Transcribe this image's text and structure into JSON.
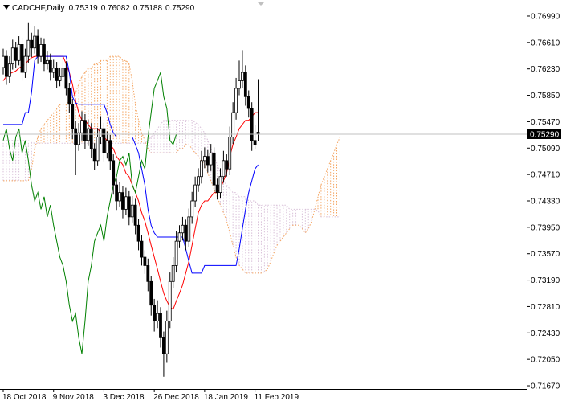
{
  "chart_data": {
    "type": "candlestick",
    "title": "CADCHF,Daily",
    "ohlc_header": [
      "0.75319",
      "0.76082",
      "0.75188",
      "0.75290"
    ],
    "candle_color": "#000000",
    "ylim": [
      0.71624,
      0.77221
    ],
    "yticks": [
      {
        "value": 0.7699,
        "label": "0.76990"
      },
      {
        "value": 0.7661,
        "label": "0.76610"
      },
      {
        "value": 0.7623,
        "label": "0.76230"
      },
      {
        "value": 0.7585,
        "label": "0.75850"
      },
      {
        "value": 0.7547,
        "label": "0.75470"
      },
      {
        "value": 0.7509,
        "label": "0.75090"
      },
      {
        "value": 0.7471,
        "label": "0.74710"
      },
      {
        "value": 0.7433,
        "label": "0.74330"
      },
      {
        "value": 0.7395,
        "label": "0.73950"
      },
      {
        "value": 0.7357,
        "label": "0.73570"
      },
      {
        "value": 0.7319,
        "label": "0.73190"
      },
      {
        "value": 0.7281,
        "label": "0.72810"
      },
      {
        "value": 0.7243,
        "label": "0.72430"
      },
      {
        "value": 0.7205,
        "label": "0.72050"
      },
      {
        "value": 0.7167,
        "label": "0.71670"
      }
    ],
    "current_price": {
      "value": 0.7529,
      "label": "0.75290"
    },
    "categories": [
      "18 Oct 2018",
      null,
      null,
      null,
      null,
      null,
      null,
      null,
      null,
      null,
      null,
      null,
      null,
      null,
      null,
      null,
      "9 Nov 2018",
      null,
      null,
      null,
      null,
      null,
      null,
      null,
      null,
      null,
      null,
      null,
      null,
      null,
      null,
      null,
      "3 Dec 2018",
      null,
      null,
      null,
      null,
      null,
      null,
      null,
      null,
      null,
      null,
      null,
      null,
      null,
      null,
      null,
      "26 Dec 2018",
      null,
      null,
      null,
      null,
      null,
      null,
      null,
      null,
      null,
      null,
      null,
      null,
      null,
      null,
      null,
      "18 Jan 2019",
      null,
      null,
      null,
      null,
      null,
      null,
      null,
      null,
      null,
      null,
      null,
      null,
      null,
      null,
      null,
      "11 Feb 2019",
      null,
      null,
      null,
      null,
      null,
      null,
      null,
      null,
      null,
      null,
      null,
      null,
      null,
      null,
      null,
      null,
      null,
      null,
      null,
      null,
      null,
      null,
      null,
      null,
      null,
      null,
      null
    ],
    "ohlc": [
      [
        0.7625,
        0.7652,
        0.7615,
        0.7641
      ],
      [
        0.7641,
        0.765,
        0.76,
        0.7612
      ],
      [
        0.7612,
        0.7641,
        0.7603,
        0.763
      ],
      [
        0.763,
        0.7665,
        0.7622,
        0.7653
      ],
      [
        0.7653,
        0.7662,
        0.7625,
        0.7635
      ],
      [
        0.7635,
        0.767,
        0.7628,
        0.7658
      ],
      [
        0.7658,
        0.7668,
        0.7606,
        0.7618
      ],
      [
        0.7618,
        0.7652,
        0.761,
        0.7641
      ],
      [
        0.7641,
        0.769,
        0.7632,
        0.7664
      ],
      [
        0.7664,
        0.7675,
        0.764,
        0.7653
      ],
      [
        0.7653,
        0.7685,
        0.7645,
        0.767
      ],
      [
        0.767,
        0.768,
        0.763,
        0.7641
      ],
      [
        0.7641,
        0.7668,
        0.7633,
        0.7658
      ],
      [
        0.7658,
        0.7667,
        0.762,
        0.763
      ],
      [
        0.763,
        0.7648,
        0.7622,
        0.7635
      ],
      [
        0.7635,
        0.7645,
        0.7606,
        0.7618
      ],
      [
        0.7618,
        0.7636,
        0.761,
        0.7624
      ],
      [
        0.7624,
        0.7633,
        0.7595,
        0.7606
      ],
      [
        0.7606,
        0.7625,
        0.7598,
        0.7612
      ],
      [
        0.7612,
        0.764,
        0.7604,
        0.7624
      ],
      [
        0.7624,
        0.7634,
        0.7585,
        0.7595
      ],
      [
        0.7595,
        0.7603,
        0.756,
        0.7572
      ],
      [
        0.7572,
        0.758,
        0.7522,
        0.7537
      ],
      [
        0.7537,
        0.7548,
        0.747,
        0.7514
      ],
      [
        0.7514,
        0.7545,
        0.7505,
        0.7531
      ],
      [
        0.7531,
        0.7562,
        0.752,
        0.7549
      ],
      [
        0.7549,
        0.7558,
        0.7508,
        0.752
      ],
      [
        0.752,
        0.755,
        0.7512,
        0.7537
      ],
      [
        0.7537,
        0.7545,
        0.7495,
        0.7508
      ],
      [
        0.7508,
        0.7516,
        0.7478,
        0.7491
      ],
      [
        0.7491,
        0.7538,
        0.7484,
        0.7525
      ],
      [
        0.7525,
        0.7555,
        0.7515,
        0.7537
      ],
      [
        0.7537,
        0.7545,
        0.749,
        0.7502
      ],
      [
        0.7502,
        0.7533,
        0.7494,
        0.752
      ],
      [
        0.752,
        0.7528,
        0.7478,
        0.7491
      ],
      [
        0.7491,
        0.75,
        0.7442,
        0.7456
      ],
      [
        0.7456,
        0.7465,
        0.742,
        0.7433
      ],
      [
        0.7433,
        0.746,
        0.7425,
        0.7445
      ],
      [
        0.7445,
        0.7454,
        0.7408,
        0.7421
      ],
      [
        0.7421,
        0.7452,
        0.7413,
        0.7439
      ],
      [
        0.7439,
        0.7447,
        0.7398,
        0.741
      ],
      [
        0.741,
        0.744,
        0.7402,
        0.7427
      ],
      [
        0.7427,
        0.7436,
        0.7385,
        0.7398
      ],
      [
        0.7398,
        0.7407,
        0.7362,
        0.7375
      ],
      [
        0.7375,
        0.7384,
        0.734,
        0.7352
      ],
      [
        0.7352,
        0.7362,
        0.7328,
        0.734
      ],
      [
        0.734,
        0.735,
        0.7303,
        0.7317
      ],
      [
        0.7317,
        0.7325,
        0.7268,
        0.7283
      ],
      [
        0.7283,
        0.7292,
        0.7245,
        0.726
      ],
      [
        0.726,
        0.729,
        0.725,
        0.7271
      ],
      [
        0.7271,
        0.728,
        0.7222,
        0.7236
      ],
      [
        0.7236,
        0.7245,
        0.718,
        0.7213
      ],
      [
        0.7213,
        0.7275,
        0.72,
        0.726
      ],
      [
        0.726,
        0.733,
        0.725,
        0.7317
      ],
      [
        0.7317,
        0.7352,
        0.7308,
        0.734
      ],
      [
        0.734,
        0.739,
        0.733,
        0.7375
      ],
      [
        0.7375,
        0.7398,
        0.7365,
        0.7387
      ],
      [
        0.7387,
        0.741,
        0.7376,
        0.7398
      ],
      [
        0.7398,
        0.7406,
        0.7362,
        0.7375
      ],
      [
        0.7375,
        0.7422,
        0.7366,
        0.741
      ],
      [
        0.741,
        0.7446,
        0.74,
        0.7433
      ],
      [
        0.7433,
        0.7468,
        0.7424,
        0.7456
      ],
      [
        0.7456,
        0.748,
        0.7446,
        0.7468
      ],
      [
        0.7468,
        0.7505,
        0.7458,
        0.7491
      ],
      [
        0.7491,
        0.751,
        0.748,
        0.7497
      ],
      [
        0.7497,
        0.7506,
        0.7474,
        0.7485
      ],
      [
        0.7485,
        0.7515,
        0.7476,
        0.7502
      ],
      [
        0.7502,
        0.751,
        0.7444,
        0.7456
      ],
      [
        0.7456,
        0.7465,
        0.7435,
        0.7445
      ],
      [
        0.7445,
        0.748,
        0.7437,
        0.7468
      ],
      [
        0.7468,
        0.7505,
        0.7459,
        0.7491
      ],
      [
        0.7491,
        0.75,
        0.7468,
        0.7479
      ],
      [
        0.7479,
        0.754,
        0.747,
        0.7525
      ],
      [
        0.7525,
        0.7575,
        0.7515,
        0.756
      ],
      [
        0.756,
        0.761,
        0.755,
        0.7595
      ],
      [
        0.7595,
        0.7635,
        0.7585,
        0.7606
      ],
      [
        0.7606,
        0.765,
        0.7596,
        0.7618
      ],
      [
        0.7618,
        0.7628,
        0.757,
        0.7583
      ],
      [
        0.7583,
        0.7592,
        0.7553,
        0.7566
      ],
      [
        0.7566,
        0.7575,
        0.7505,
        0.752
      ],
      [
        0.752,
        0.7542,
        0.7508,
        0.7514
      ],
      [
        0.75319,
        0.76082,
        0.75188,
        0.7529
      ],
      null,
      null,
      null,
      null,
      null,
      null,
      null,
      null,
      null,
      null,
      null,
      null,
      null,
      null,
      null,
      null,
      null,
      null,
      null,
      null,
      null,
      null,
      null,
      null,
      null,
      null
    ],
    "lines": [
      {
        "color": "#ff0000",
        "values": [
          0.7606,
          0.7612,
          0.7616,
          0.7618,
          0.762,
          0.7624,
          0.7627,
          0.763,
          0.7635,
          0.7639,
          0.7641,
          0.7641,
          0.7641,
          0.7641,
          0.7641,
          0.7641,
          0.7641,
          0.7641,
          0.7641,
          0.7641,
          0.763,
          0.7618,
          0.7601,
          0.7577,
          0.756,
          0.7549,
          0.7549,
          0.7543,
          0.7537,
          0.7537,
          0.7537,
          0.7531,
          0.7525,
          0.752,
          0.7514,
          0.7508,
          0.7497,
          0.7491,
          0.7485,
          0.7473,
          0.7468,
          0.7456,
          0.7445,
          0.7433,
          0.7416,
          0.7404,
          0.7387,
          0.7369,
          0.7352,
          0.7335,
          0.7317,
          0.73,
          0.7289,
          0.728,
          0.7277,
          0.7289,
          0.73,
          0.7312,
          0.7329,
          0.7346,
          0.7369,
          0.7393,
          0.7416,
          0.7427,
          0.7433,
          0.7433,
          0.7439,
          0.7445,
          0.7445,
          0.745,
          0.7462,
          0.7473,
          0.7497,
          0.7514,
          0.7525,
          0.7537,
          0.7543,
          0.7549,
          0.7549,
          0.7554,
          0.756,
          0.756,
          null,
          null,
          null,
          null,
          null,
          null,
          null,
          null,
          null,
          null,
          null,
          null,
          null,
          null,
          null,
          null,
          null,
          null,
          null,
          null,
          null,
          null,
          null,
          null,
          null,
          null
        ]
      },
      {
        "color": "#0000ff",
        "values": [
          0.7543,
          0.7543,
          0.7543,
          0.7543,
          0.7543,
          0.7543,
          0.7543,
          0.756,
          0.756,
          0.7589,
          0.7635,
          0.7641,
          0.7641,
          0.7641,
          0.7641,
          0.7641,
          0.7641,
          0.7641,
          0.7641,
          0.7641,
          0.7641,
          0.7618,
          0.7583,
          0.7574,
          0.7572,
          0.7572,
          0.7572,
          0.7572,
          0.7572,
          0.7572,
          0.7572,
          0.7572,
          0.7572,
          0.756,
          0.7543,
          0.7531,
          0.7525,
          0.7525,
          0.7525,
          0.7525,
          0.7525,
          0.7525,
          0.7514,
          0.7502,
          0.7479,
          0.7456,
          0.7421,
          0.7398,
          0.7387,
          0.7381,
          0.7381,
          0.7381,
          0.7381,
          0.7381,
          0.7381,
          0.7381,
          0.7381,
          0.7381,
          0.7364,
          0.7346,
          0.7329,
          0.7329,
          0.7329,
          0.7329,
          0.734,
          0.734,
          0.734,
          0.734,
          0.734,
          0.734,
          0.734,
          0.734,
          0.734,
          0.734,
          0.734,
          0.7364,
          0.7393,
          0.7421,
          0.7445,
          0.7462,
          0.7479,
          0.7485,
          null,
          null,
          null,
          null,
          null,
          null,
          null,
          null,
          null,
          null,
          null,
          null,
          null,
          null,
          null,
          null,
          null,
          null,
          null,
          null,
          null,
          null,
          null,
          null,
          null,
          null
        ]
      },
      {
        "color": "#008000",
        "values": [
          0.752,
          0.7537,
          0.7508,
          0.7491,
          0.7525,
          0.7537,
          0.7502,
          0.752,
          0.7491,
          0.7456,
          0.7433,
          0.7445,
          0.7421,
          0.7439,
          0.741,
          0.7427,
          0.7398,
          0.7375,
          0.7352,
          0.734,
          0.7317,
          0.7283,
          0.726,
          0.7271,
          0.7236,
          0.7213,
          0.726,
          0.7317,
          0.734,
          0.7375,
          0.7387,
          0.7398,
          0.7375,
          0.741,
          0.7433,
          0.7456,
          0.7468,
          0.7491,
          0.7497,
          0.7485,
          0.7502,
          0.7456,
          0.7445,
          0.7468,
          0.7491,
          0.7479,
          0.7525,
          0.756,
          0.7595,
          0.7606,
          0.7618,
          0.7583,
          0.7566,
          0.752,
          0.7514,
          0.7529,
          null,
          null,
          null,
          null,
          null,
          null,
          null,
          null,
          null,
          null,
          null,
          null,
          null,
          null,
          null,
          null,
          null,
          null,
          null,
          null,
          null,
          null,
          null,
          null,
          null,
          null,
          null,
          null,
          null,
          null,
          null,
          null,
          null,
          null,
          null,
          null,
          null,
          null,
          null,
          null,
          null,
          null,
          null,
          null,
          null,
          null,
          null,
          null,
          null,
          null,
          null,
          null
        ]
      }
    ],
    "cloud": {
      "up_color": "#f4a460",
      "down_color": "#d8bfd8",
      "span_a": [
        0.7462,
        0.7462,
        0.7462,
        0.7462,
        0.7462,
        0.7462,
        0.7462,
        0.7462,
        0.7462,
        0.7479,
        0.7508,
        0.7525,
        0.7537,
        0.7543,
        0.7549,
        0.7554,
        0.756,
        0.7566,
        0.7572,
        0.7572,
        0.7572,
        0.7577,
        0.7583,
        0.7589,
        0.7601,
        0.7612,
        0.7618,
        0.7624,
        0.7624,
        0.763,
        0.763,
        0.7635,
        0.7635,
        0.7635,
        0.7641,
        0.7641,
        0.7641,
        0.7641,
        0.7635,
        0.7635,
        0.763,
        0.7606,
        0.7572,
        0.7549,
        0.7531,
        0.752,
        0.7508,
        0.7502,
        0.7502,
        0.7502,
        0.7502,
        0.7502,
        0.7502,
        0.7502,
        0.7502,
        0.7502,
        0.7508,
        0.7508,
        0.7514,
        0.7514,
        0.7508,
        0.7502,
        0.7497,
        0.7491,
        0.7485,
        0.7473,
        0.7462,
        0.745,
        0.7439,
        0.7427,
        0.7416,
        0.7404,
        0.7387,
        0.7369,
        0.7352,
        0.734,
        0.7335,
        0.7329,
        0.7329,
        0.7329,
        0.7329,
        0.7329,
        0.7329,
        0.7331,
        0.7335,
        0.7346,
        0.7358,
        0.7369,
        0.7375,
        0.7381,
        0.7387,
        0.7393,
        0.7398,
        0.7398,
        0.7398,
        0.7393,
        0.7387,
        0.7393,
        0.7404,
        0.7421,
        0.7439,
        0.7456,
        0.7468,
        0.7479,
        0.7491,
        0.7502,
        0.7514,
        0.7525
      ],
      "span_b": [
        0.752,
        0.752,
        0.752,
        0.752,
        0.752,
        0.752,
        0.752,
        0.752,
        0.752,
        0.7517,
        0.7516,
        0.7516,
        0.7516,
        0.7516,
        0.7516,
        0.7516,
        0.7516,
        0.7516,
        0.7516,
        0.7516,
        0.7516,
        0.7516,
        0.7516,
        0.7516,
        0.7516,
        0.7516,
        0.7516,
        0.7516,
        0.7516,
        0.7516,
        0.7516,
        0.7516,
        0.7516,
        0.7516,
        0.7516,
        0.7516,
        0.7516,
        0.7516,
        0.7516,
        0.7516,
        0.7516,
        0.7516,
        0.7516,
        0.7516,
        0.7516,
        0.7516,
        0.752,
        0.7525,
        0.7531,
        0.7537,
        0.7543,
        0.7549,
        0.7549,
        0.7549,
        0.7549,
        0.7549,
        0.7549,
        0.7549,
        0.7549,
        0.7549,
        0.7549,
        0.7546,
        0.7543,
        0.7537,
        0.7531,
        0.752,
        0.7508,
        0.7497,
        0.7485,
        0.7473,
        0.7462,
        0.7456,
        0.745,
        0.7445,
        0.7445,
        0.7439,
        0.7439,
        0.7439,
        0.7433,
        0.7433,
        0.7433,
        0.7427,
        0.7427,
        0.7427,
        0.7427,
        0.7427,
        0.7427,
        0.7427,
        0.7427,
        0.7427,
        0.7427,
        0.7421,
        0.7421,
        0.7421,
        0.7421,
        0.7421,
        0.7421,
        0.7421,
        0.7421,
        0.7421,
        0.7419,
        0.741,
        0.741,
        0.741,
        0.741,
        0.741,
        0.741,
        0.741
      ]
    }
  }
}
